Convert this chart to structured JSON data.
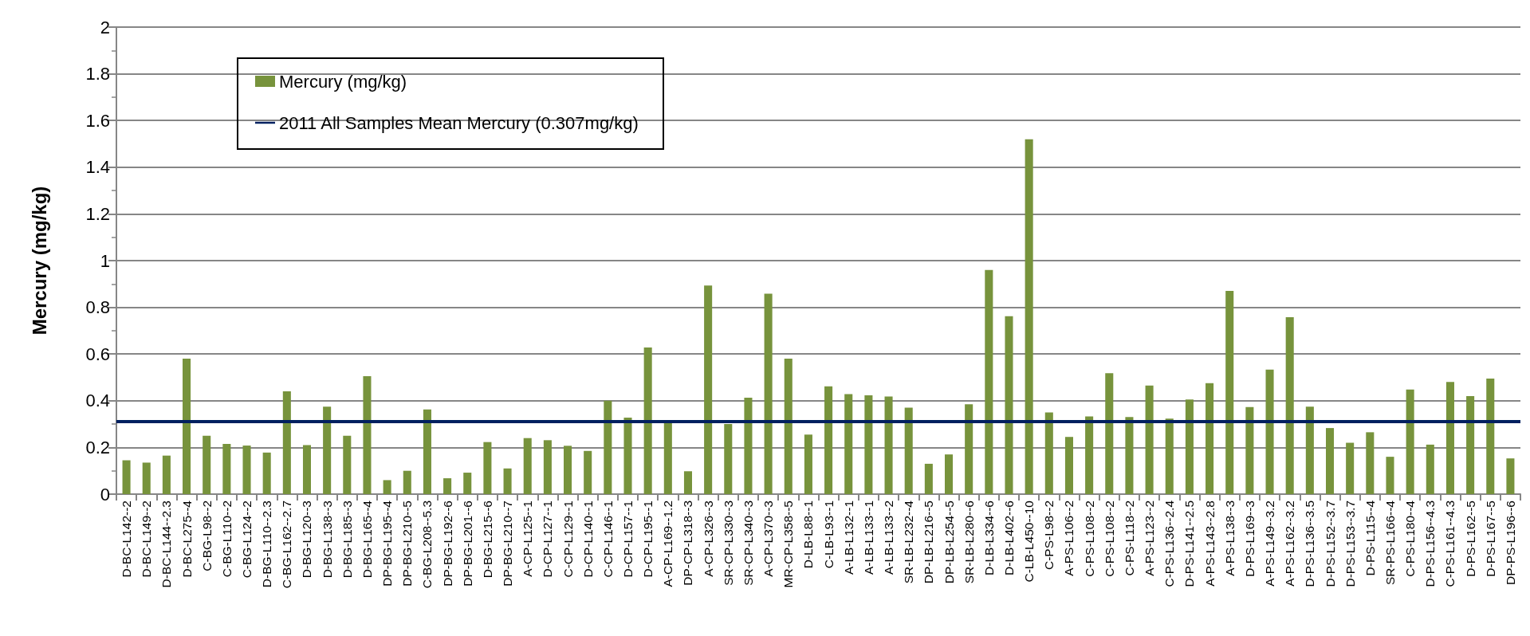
{
  "chart_data": {
    "type": "bar",
    "ylabel": "Mercury (mg/kg)",
    "categories": [
      "D-BC-L142--2",
      "D-BC-L149--2",
      "D-BC-L144--2.3",
      "D-BC-L275--4",
      "C-BG-L98--2",
      "C-BG-L110--2",
      "C-BG-L124--2",
      "D-BG-L110--2.3",
      "C-BG-L162--2.7",
      "D-BG-L120--3",
      "D-BG-L138--3",
      "D-BG-L185--3",
      "D-BG-L165--4",
      "DP-BG-L195--4",
      "DP-BG-L210--5",
      "C-BG-L208--5.3",
      "DP-BG-L192--6",
      "DP-BG-L201--6",
      "D-BG-L215--6",
      "DP-BG-L210--7",
      "A-CP-L125--1",
      "D-CP-L127--1",
      "C-CP-L129--1",
      "D-CP-L140--1",
      "C-CP-L146--1",
      "D-CP-L157--1",
      "D-CP-L195--1",
      "A-CP-L169--1.2",
      "DP-CP-L318--3",
      "A-CP-L326--3",
      "SR-CP-L330--3",
      "SR-CP-L340--3",
      "A-CP-L370--3",
      "MR-CP-L358--5",
      "D-LB-L88--1",
      "C-LB-L93--1",
      "A-LB-L132--1",
      "A-LB-L133--1",
      "A-LB-L133--2",
      "SR-LB-L232--4",
      "DP-LB-L216--5",
      "DP-LB-L254--5",
      "SR-LB-L280--6",
      "D-LB-L334--6",
      "D-LB-L402--6",
      "C-LB-L450--10",
      "C-PS-L98--2",
      "A-PS-L106--2",
      "C-PS-L108--2",
      "C-PS-L108--2",
      "C-PS-L118--2",
      "A-PS-L123--2",
      "C-PS-L136--2.4",
      "D-PS-L141--2.5",
      "A-PS-L143--2.8",
      "A-PS-L138--3",
      "D-PS-L169--3",
      "A-PS-L149--3.2",
      "A-PS-L162--3.2",
      "D-PS-L136--3.5",
      "D-PS-L152--3.7",
      "D-PS-L153--3.7",
      "D-PS-L115--4",
      "SR-PS-L166--4",
      "C-PS-L180--4",
      "D-PS-L156--4.3",
      "C-PS-L161--4.3",
      "D-PS-L162--5",
      "D-PS-L167--5",
      "DP-PS-L196--6"
    ],
    "series": [
      {
        "name": "Mercury (mg/kg)",
        "color": "#77933c",
        "values": [
          0.145,
          0.135,
          0.165,
          0.58,
          0.25,
          0.215,
          0.208,
          0.178,
          0.44,
          0.21,
          0.375,
          0.25,
          0.505,
          0.06,
          0.1,
          0.363,
          0.068,
          0.092,
          0.223,
          0.11,
          0.24,
          0.231,
          0.207,
          0.185,
          0.4,
          0.328,
          0.628,
          0.305,
          0.098,
          0.893,
          0.3,
          0.413,
          0.858,
          0.58,
          0.255,
          0.462,
          0.428,
          0.423,
          0.418,
          0.37,
          0.13,
          0.17,
          0.385,
          0.96,
          0.762,
          1.52,
          0.35,
          0.245,
          0.333,
          0.518,
          0.33,
          0.465,
          0.323,
          0.405,
          0.475,
          0.87,
          0.373,
          0.533,
          0.758,
          0.375,
          0.283,
          0.22,
          0.265,
          0.16,
          0.448,
          0.212,
          0.48,
          0.42,
          0.495,
          0.153
        ]
      }
    ],
    "ref_lines": [
      {
        "axis": "y",
        "value": 0.307,
        "label": "2011 All Samples Mean Mercury (0.307mg/kg)",
        "color": "#002060"
      }
    ],
    "ylim": [
      0,
      2
    ],
    "yticks": [
      0,
      0.2,
      0.4,
      0.6,
      0.8,
      1,
      1.2,
      1.4,
      1.6,
      1.8,
      2
    ],
    "grid": "y",
    "legend": "top left"
  }
}
